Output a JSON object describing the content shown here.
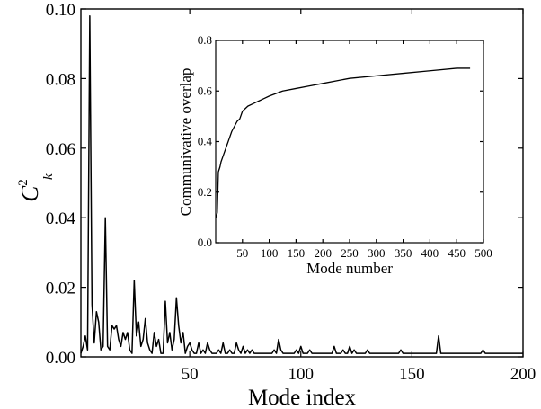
{
  "chart_data": [
    {
      "type": "line",
      "xlabel": "Mode index",
      "ylabel": "C",
      "ylabel_superscript": "2",
      "ylabel_subscript": "k",
      "xlim": [
        1,
        200
      ],
      "ylim": [
        0,
        0.1
      ],
      "xticks": [
        50,
        100,
        150,
        200
      ],
      "xtick_labels": [
        "50",
        "100",
        "150",
        "200"
      ],
      "yticks": [
        0,
        0.02,
        0.04,
        0.06,
        0.08,
        0.1
      ],
      "ytick_labels": [
        "0.00",
        "0.02",
        "0.04",
        "0.06",
        "0.08",
        "0.10"
      ],
      "grid": false,
      "series": [
        {
          "x": [
            1,
            2,
            3,
            4,
            5,
            6,
            7,
            8,
            9,
            10,
            11,
            12,
            13,
            14,
            15,
            16,
            17,
            18,
            19,
            20,
            21,
            22,
            23,
            24,
            25,
            26,
            27,
            28,
            29,
            30,
            31,
            32,
            33,
            34,
            35,
            36,
            37,
            38,
            39,
            40,
            41,
            42,
            43,
            44,
            45,
            46,
            47,
            48,
            49,
            50,
            51,
            52,
            53,
            54,
            55,
            56,
            57,
            58,
            59,
            60,
            61,
            62,
            63,
            64,
            65,
            66,
            67,
            68,
            69,
            70,
            71,
            72,
            73,
            74,
            75,
            76,
            77,
            78,
            79,
            80,
            81,
            82,
            83,
            84,
            85,
            86,
            87,
            88,
            89,
            90,
            91,
            92,
            93,
            94,
            95,
            96,
            97,
            98,
            99,
            100,
            101,
            102,
            103,
            104,
            105,
            106,
            107,
            108,
            109,
            110,
            111,
            112,
            113,
            114,
            115,
            116,
            117,
            118,
            119,
            120,
            121,
            122,
            123,
            124,
            125,
            126,
            127,
            128,
            129,
            130,
            131,
            132,
            133,
            134,
            135,
            136,
            137,
            138,
            139,
            140,
            141,
            142,
            143,
            144,
            145,
            146,
            147,
            148,
            149,
            150,
            151,
            152,
            153,
            154,
            155,
            156,
            157,
            158,
            159,
            160,
            161,
            162,
            163,
            164,
            165,
            166,
            167,
            168,
            169,
            170,
            171,
            172,
            173,
            174,
            175,
            176,
            177,
            178,
            179,
            180,
            181,
            182,
            183,
            184,
            185,
            186,
            187,
            188,
            189,
            190,
            191,
            192,
            193,
            194,
            195,
            196,
            197,
            198,
            199,
            200
          ],
          "values": [
            0.001,
            0.003,
            0.006,
            0.002,
            0.098,
            0.015,
            0.004,
            0.013,
            0.01,
            0.002,
            0.003,
            0.04,
            0.003,
            0.002,
            0.009,
            0.008,
            0.009,
            0.005,
            0.003,
            0.007,
            0.005,
            0.007,
            0.002,
            0.001,
            0.022,
            0.006,
            0.01,
            0.003,
            0.005,
            0.011,
            0.004,
            0.002,
            0.001,
            0.007,
            0.003,
            0.005,
            0.001,
            0.001,
            0.016,
            0.004,
            0.007,
            0.002,
            0.005,
            0.017,
            0.009,
            0.004,
            0.007,
            0.001,
            0.003,
            0.004,
            0.002,
            0.001,
            0.001,
            0.004,
            0.001,
            0.002,
            0.001,
            0.004,
            0.002,
            0.001,
            0.001,
            0.001,
            0.002,
            0.001,
            0.004,
            0.001,
            0.001,
            0.002,
            0.001,
            0.001,
            0.004,
            0.002,
            0.001,
            0.003,
            0.001,
            0.002,
            0.001,
            0.002,
            0.001,
            0.001,
            0.001,
            0.001,
            0.001,
            0.001,
            0.001,
            0.001,
            0.001,
            0.002,
            0.001,
            0.005,
            0.002,
            0.001,
            0.001,
            0.001,
            0.001,
            0.001,
            0.001,
            0.002,
            0.001,
            0.003,
            0.001,
            0.001,
            0.001,
            0.002,
            0.001,
            0.001,
            0.001,
            0.001,
            0.001,
            0.001,
            0.001,
            0.001,
            0.001,
            0.001,
            0.003,
            0.001,
            0.001,
            0.001,
            0.002,
            0.001,
            0.001,
            0.003,
            0.001,
            0.002,
            0.001,
            0.001,
            0.001,
            0.001,
            0.001,
            0.002,
            0.001,
            0.001,
            0.001,
            0.001,
            0.001,
            0.001,
            0.001,
            0.001,
            0.001,
            0.001,
            0.001,
            0.001,
            0.001,
            0.001,
            0.002,
            0.001,
            0.001,
            0.001,
            0.001,
            0.001,
            0.001,
            0.001,
            0.001,
            0.001,
            0.001,
            0.001,
            0.001,
            0.001,
            0.001,
            0.001,
            0.001,
            0.006,
            0.001,
            0.001,
            0.001,
            0.001,
            0.001,
            0.001,
            0.001,
            0.001,
            0.001,
            0.001,
            0.001,
            0.001,
            0.001,
            0.001,
            0.001,
            0.001,
            0.001,
            0.001,
            0.001,
            0.002,
            0.001,
            0.001,
            0.001,
            0.001,
            0.001,
            0.001,
            0.001,
            0.001,
            0.001,
            0.001,
            0.001,
            0.001,
            0.001,
            0.001,
            0.001,
            0.001,
            0.001,
            0.001
          ]
        }
      ]
    },
    {
      "type": "line",
      "xlabel": "Mode number",
      "ylabel": "Communivative overlap",
      "xlim": [
        0,
        500
      ],
      "ylim": [
        0,
        0.8
      ],
      "xticks": [
        50,
        100,
        150,
        200,
        250,
        300,
        350,
        400,
        450,
        500
      ],
      "xtick_labels": [
        "50",
        "100",
        "150",
        "200",
        "250",
        "300",
        "350",
        "400",
        "450",
        "500"
      ],
      "yticks": [
        0,
        0.2,
        0.4,
        0.6,
        0.8
      ],
      "ytick_labels": [
        "0.0",
        "0.2",
        "0.4",
        "0.6",
        "0.8"
      ],
      "grid": false,
      "series": [
        {
          "x": [
            1,
            3,
            5,
            8,
            10,
            15,
            20,
            25,
            30,
            35,
            40,
            45,
            50,
            60,
            70,
            80,
            90,
            100,
            125,
            150,
            175,
            200,
            250,
            300,
            350,
            400,
            450,
            475
          ],
          "values": [
            0.1,
            0.12,
            0.28,
            0.3,
            0.32,
            0.35,
            0.38,
            0.41,
            0.44,
            0.46,
            0.48,
            0.49,
            0.52,
            0.54,
            0.55,
            0.56,
            0.57,
            0.58,
            0.6,
            0.61,
            0.62,
            0.63,
            0.65,
            0.66,
            0.67,
            0.68,
            0.69,
            0.69
          ]
        }
      ]
    }
  ]
}
